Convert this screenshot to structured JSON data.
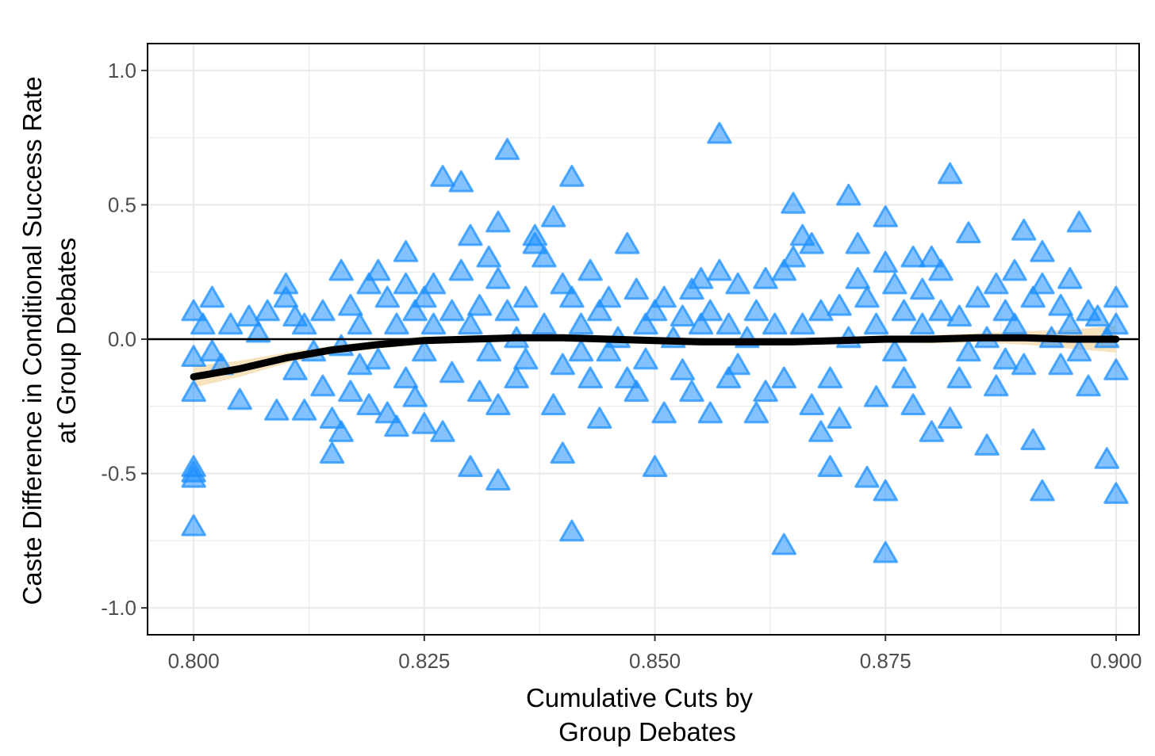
{
  "chart_data": {
    "type": "scatter",
    "title": "",
    "xlabel_lines": [
      "Cumulative Cuts by",
      "Group Debates"
    ],
    "ylabel_lines": [
      "Caste Difference in Conditional Success Rate",
      "at Group Debates"
    ],
    "xlim": [
      0.795,
      0.9025
    ],
    "ylim": [
      -1.1,
      1.1
    ],
    "x_ticks": [
      0.8,
      0.825,
      0.85,
      0.875,
      0.9
    ],
    "x_tick_labels": [
      "0.800",
      "0.825",
      "0.850",
      "0.875",
      "0.900"
    ],
    "y_ticks": [
      -1.0,
      -0.5,
      0.0,
      0.5,
      1.0
    ],
    "y_tick_labels": [
      "-1.0",
      "-0.5",
      "0.0",
      "0.5",
      "1.0"
    ],
    "grid": true,
    "reference_line_y": 0.0,
    "colors": {
      "points": "#1e90ff",
      "smooth_line": "#000000",
      "confidence_band": "#f5deb3",
      "grid": "#ebebeb",
      "panel_border": "#000000"
    },
    "points_marker": "triangle",
    "points": [
      [
        0.8,
        0.1
      ],
      [
        0.8,
        -0.07
      ],
      [
        0.8,
        -0.2
      ],
      [
        0.8,
        -0.48
      ],
      [
        0.8,
        -0.5
      ],
      [
        0.8,
        -0.52
      ],
      [
        0.8,
        -0.7
      ],
      [
        0.801,
        0.05
      ],
      [
        0.802,
        -0.05
      ],
      [
        0.802,
        0.15
      ],
      [
        0.803,
        -0.1
      ],
      [
        0.804,
        0.05
      ],
      [
        0.805,
        -0.23
      ],
      [
        0.806,
        0.08
      ],
      [
        0.807,
        0.02
      ],
      [
        0.808,
        0.1
      ],
      [
        0.809,
        -0.27
      ],
      [
        0.81,
        0.2
      ],
      [
        0.81,
        0.15
      ],
      [
        0.811,
        0.08
      ],
      [
        0.811,
        -0.12
      ],
      [
        0.812,
        0.05
      ],
      [
        0.812,
        -0.27
      ],
      [
        0.813,
        -0.05
      ],
      [
        0.814,
        0.1
      ],
      [
        0.814,
        -0.18
      ],
      [
        0.815,
        -0.3
      ],
      [
        0.815,
        -0.43
      ],
      [
        0.816,
        0.25
      ],
      [
        0.816,
        -0.35
      ],
      [
        0.816,
        -0.03
      ],
      [
        0.817,
        0.12
      ],
      [
        0.817,
        -0.2
      ],
      [
        0.818,
        0.05
      ],
      [
        0.818,
        -0.1
      ],
      [
        0.819,
        0.2
      ],
      [
        0.819,
        -0.25
      ],
      [
        0.82,
        0.25
      ],
      [
        0.82,
        -0.08
      ],
      [
        0.821,
        0.15
      ],
      [
        0.821,
        -0.28
      ],
      [
        0.822,
        -0.33
      ],
      [
        0.822,
        0.05
      ],
      [
        0.823,
        0.32
      ],
      [
        0.823,
        0.2
      ],
      [
        0.823,
        -0.15
      ],
      [
        0.824,
        0.1
      ],
      [
        0.824,
        -0.22
      ],
      [
        0.825,
        0.15
      ],
      [
        0.825,
        -0.05
      ],
      [
        0.825,
        -0.32
      ],
      [
        0.826,
        0.2
      ],
      [
        0.826,
        0.05
      ],
      [
        0.827,
        0.6
      ],
      [
        0.827,
        -0.35
      ],
      [
        0.828,
        0.1
      ],
      [
        0.828,
        -0.13
      ],
      [
        0.829,
        0.58
      ],
      [
        0.829,
        0.25
      ],
      [
        0.83,
        0.05
      ],
      [
        0.83,
        -0.48
      ],
      [
        0.83,
        0.38
      ],
      [
        0.831,
        -0.2
      ],
      [
        0.831,
        0.12
      ],
      [
        0.832,
        0.3
      ],
      [
        0.832,
        -0.05
      ],
      [
        0.833,
        0.43
      ],
      [
        0.833,
        0.22
      ],
      [
        0.833,
        -0.25
      ],
      [
        0.833,
        -0.53
      ],
      [
        0.834,
        0.7
      ],
      [
        0.834,
        0.1
      ],
      [
        0.835,
        0.0
      ],
      [
        0.835,
        -0.15
      ],
      [
        0.836,
        0.15
      ],
      [
        0.836,
        -0.08
      ],
      [
        0.837,
        0.38
      ],
      [
        0.837,
        0.35
      ],
      [
        0.838,
        0.3
      ],
      [
        0.838,
        0.05
      ],
      [
        0.839,
        0.45
      ],
      [
        0.839,
        -0.25
      ],
      [
        0.84,
        0.2
      ],
      [
        0.84,
        -0.1
      ],
      [
        0.84,
        -0.43
      ],
      [
        0.841,
        0.6
      ],
      [
        0.841,
        -0.72
      ],
      [
        0.841,
        0.15
      ],
      [
        0.842,
        0.05
      ],
      [
        0.842,
        -0.05
      ],
      [
        0.843,
        0.25
      ],
      [
        0.843,
        -0.15
      ],
      [
        0.844,
        -0.3
      ],
      [
        0.844,
        0.1
      ],
      [
        0.845,
        0.15
      ],
      [
        0.845,
        -0.05
      ],
      [
        0.846,
        0.0
      ],
      [
        0.847,
        0.35
      ],
      [
        0.847,
        -0.15
      ],
      [
        0.848,
        0.18
      ],
      [
        0.848,
        -0.2
      ],
      [
        0.849,
        0.05
      ],
      [
        0.849,
        -0.08
      ],
      [
        0.85,
        -0.48
      ],
      [
        0.85,
        0.1
      ],
      [
        0.851,
        -0.28
      ],
      [
        0.851,
        0.15
      ],
      [
        0.852,
        0.0
      ],
      [
        0.853,
        0.08
      ],
      [
        0.853,
        -0.12
      ],
      [
        0.854,
        0.18
      ],
      [
        0.854,
        -0.2
      ],
      [
        0.855,
        0.22
      ],
      [
        0.855,
        0.05
      ],
      [
        0.856,
        0.1
      ],
      [
        0.856,
        -0.28
      ],
      [
        0.857,
        0.76
      ],
      [
        0.857,
        0.25
      ],
      [
        0.858,
        -0.15
      ],
      [
        0.858,
        0.05
      ],
      [
        0.859,
        0.2
      ],
      [
        0.859,
        -0.1
      ],
      [
        0.86,
        0.0
      ],
      [
        0.861,
        -0.28
      ],
      [
        0.861,
        0.1
      ],
      [
        0.862,
        0.22
      ],
      [
        0.862,
        -0.2
      ],
      [
        0.863,
        0.05
      ],
      [
        0.864,
        -0.77
      ],
      [
        0.864,
        0.25
      ],
      [
        0.864,
        -0.15
      ],
      [
        0.865,
        0.5
      ],
      [
        0.865,
        0.3
      ],
      [
        0.866,
        0.38
      ],
      [
        0.866,
        0.05
      ],
      [
        0.867,
        -0.25
      ],
      [
        0.867,
        0.35
      ],
      [
        0.868,
        -0.35
      ],
      [
        0.868,
        0.1
      ],
      [
        0.869,
        -0.48
      ],
      [
        0.869,
        -0.15
      ],
      [
        0.87,
        0.12
      ],
      [
        0.87,
        -0.3
      ],
      [
        0.871,
        0.53
      ],
      [
        0.871,
        0.0
      ],
      [
        0.872,
        0.35
      ],
      [
        0.872,
        0.22
      ],
      [
        0.873,
        -0.52
      ],
      [
        0.873,
        0.15
      ],
      [
        0.874,
        -0.22
      ],
      [
        0.874,
        0.05
      ],
      [
        0.875,
        0.45
      ],
      [
        0.875,
        -0.57
      ],
      [
        0.875,
        -0.8
      ],
      [
        0.875,
        0.28
      ],
      [
        0.876,
        0.2
      ],
      [
        0.876,
        -0.05
      ],
      [
        0.877,
        0.1
      ],
      [
        0.877,
        -0.15
      ],
      [
        0.878,
        0.3
      ],
      [
        0.878,
        -0.25
      ],
      [
        0.879,
        0.05
      ],
      [
        0.879,
        0.18
      ],
      [
        0.88,
        -0.35
      ],
      [
        0.88,
        0.3
      ],
      [
        0.881,
        0.25
      ],
      [
        0.881,
        0.1
      ],
      [
        0.882,
        0.61
      ],
      [
        0.882,
        -0.3
      ],
      [
        0.883,
        -0.15
      ],
      [
        0.883,
        0.08
      ],
      [
        0.884,
        0.39
      ],
      [
        0.884,
        -0.05
      ],
      [
        0.885,
        0.15
      ],
      [
        0.886,
        -0.4
      ],
      [
        0.886,
        0.0
      ],
      [
        0.887,
        -0.18
      ],
      [
        0.887,
        0.2
      ],
      [
        0.888,
        0.1
      ],
      [
        0.888,
        -0.08
      ],
      [
        0.889,
        0.25
      ],
      [
        0.889,
        0.05
      ],
      [
        0.89,
        0.4
      ],
      [
        0.89,
        -0.1
      ],
      [
        0.891,
        -0.38
      ],
      [
        0.891,
        0.15
      ],
      [
        0.892,
        -0.57
      ],
      [
        0.892,
        0.32
      ],
      [
        0.892,
        0.2
      ],
      [
        0.893,
        0.0
      ],
      [
        0.894,
        0.12
      ],
      [
        0.894,
        -0.1
      ],
      [
        0.895,
        0.22
      ],
      [
        0.895,
        0.05
      ],
      [
        0.896,
        0.43
      ],
      [
        0.896,
        -0.05
      ],
      [
        0.897,
        -0.18
      ],
      [
        0.897,
        0.1
      ],
      [
        0.898,
        0.08
      ],
      [
        0.899,
        -0.45
      ],
      [
        0.899,
        0.0
      ],
      [
        0.9,
        0.15
      ],
      [
        0.9,
        -0.58
      ],
      [
        0.9,
        -0.12
      ],
      [
        0.9,
        0.05
      ]
    ],
    "smooth_line": [
      [
        0.8,
        -0.14
      ],
      [
        0.805,
        -0.11
      ],
      [
        0.81,
        -0.07
      ],
      [
        0.815,
        -0.04
      ],
      [
        0.82,
        -0.02
      ],
      [
        0.825,
        -0.005
      ],
      [
        0.83,
        0.0
      ],
      [
        0.835,
        0.005
      ],
      [
        0.84,
        0.005
      ],
      [
        0.845,
        0.0
      ],
      [
        0.85,
        -0.005
      ],
      [
        0.855,
        -0.01
      ],
      [
        0.86,
        -0.01
      ],
      [
        0.865,
        -0.01
      ],
      [
        0.87,
        -0.005
      ],
      [
        0.875,
        0.0
      ],
      [
        0.88,
        0.0
      ],
      [
        0.885,
        0.005
      ],
      [
        0.89,
        0.005
      ],
      [
        0.895,
        0.0
      ],
      [
        0.9,
        0.0
      ]
    ],
    "confidence_band": [
      [
        0.8,
        -0.18,
        -0.1
      ],
      [
        0.805,
        -0.14,
        -0.08
      ],
      [
        0.81,
        -0.09,
        -0.05
      ],
      [
        0.815,
        -0.055,
        -0.025
      ],
      [
        0.82,
        -0.035,
        -0.005
      ],
      [
        0.825,
        -0.02,
        0.01
      ],
      [
        0.83,
        -0.012,
        0.012
      ],
      [
        0.835,
        -0.007,
        0.017
      ],
      [
        0.84,
        -0.007,
        0.017
      ],
      [
        0.845,
        -0.012,
        0.012
      ],
      [
        0.85,
        -0.017,
        0.007
      ],
      [
        0.855,
        -0.022,
        0.002
      ],
      [
        0.86,
        -0.022,
        0.002
      ],
      [
        0.865,
        -0.022,
        0.002
      ],
      [
        0.87,
        -0.017,
        0.007
      ],
      [
        0.875,
        -0.012,
        0.012
      ],
      [
        0.88,
        -0.015,
        0.015
      ],
      [
        0.885,
        -0.012,
        0.022
      ],
      [
        0.89,
        -0.02,
        0.03
      ],
      [
        0.895,
        -0.035,
        0.035
      ],
      [
        0.9,
        -0.05,
        0.05
      ]
    ]
  }
}
